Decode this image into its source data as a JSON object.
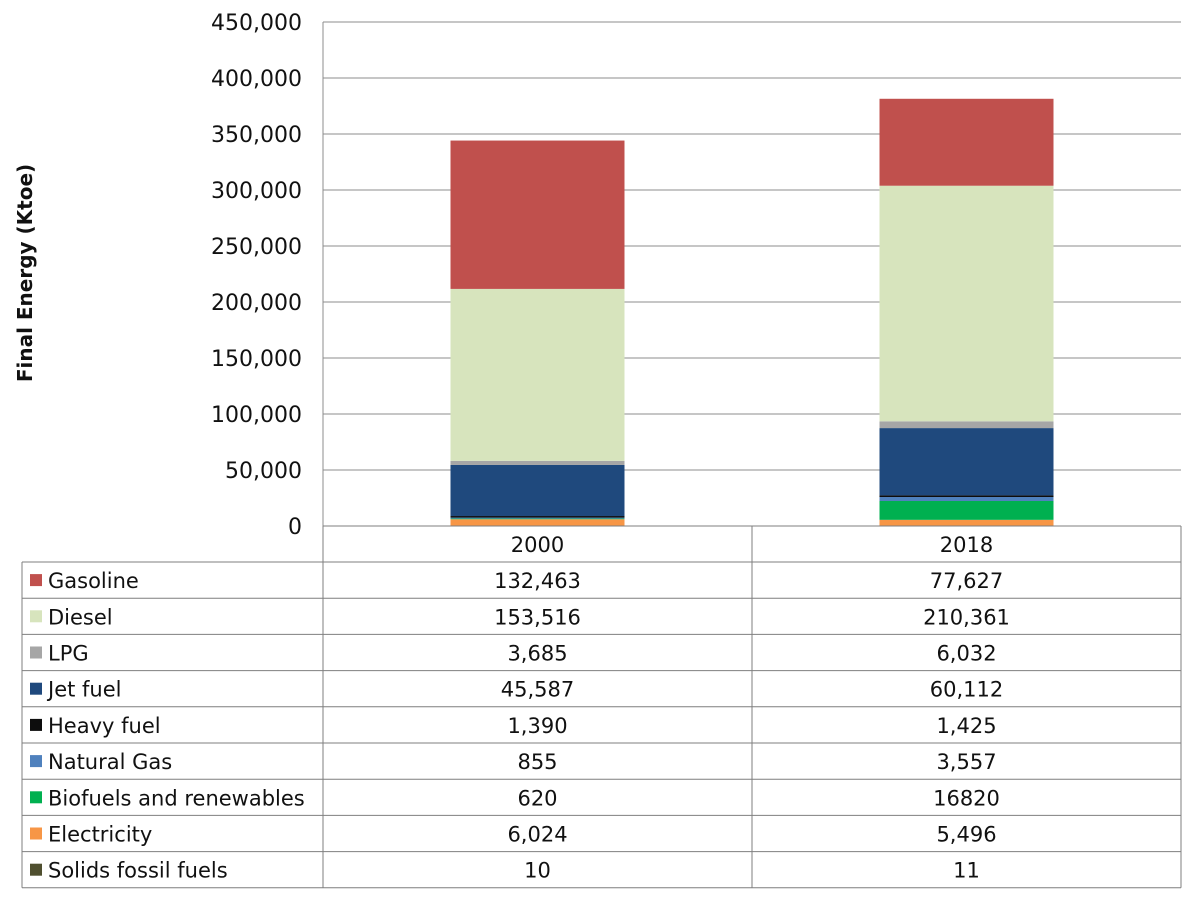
{
  "chart_data": {
    "type": "bar",
    "stacked": true,
    "title": "",
    "xlabel": "",
    "ylabel": "Final Energy (Ktoe)",
    "ylim": [
      0,
      450000
    ],
    "yticks": [
      0,
      50000,
      100000,
      150000,
      200000,
      250000,
      300000,
      350000,
      400000,
      450000
    ],
    "ytick_labels": [
      "0",
      "50,000",
      "100,000",
      "150,000",
      "200,000",
      "250,000",
      "300,000",
      "350,000",
      "400,000",
      "450,000"
    ],
    "grid": true,
    "legend_placement": "data-table",
    "categories": [
      "2000",
      "2018"
    ],
    "series": [
      {
        "name": "Gasoline",
        "color": "#c0504d",
        "values": [
          132463,
          77627
        ],
        "labels": [
          "132,463",
          "77,627"
        ]
      },
      {
        "name": "Diesel",
        "color": "#d7e4bd",
        "values": [
          153516,
          210361
        ],
        "labels": [
          "153,516",
          "210,361"
        ]
      },
      {
        "name": "LPG",
        "color": "#a6a6a6",
        "values": [
          3685,
          6032
        ],
        "labels": [
          "3,685",
          "6,032"
        ]
      },
      {
        "name": "Jet fuel",
        "color": "#1f497d",
        "values": [
          45587,
          60112
        ],
        "labels": [
          "45,587",
          "60,112"
        ]
      },
      {
        "name": "Heavy fuel",
        "color": "#0d0d0d",
        "values": [
          1390,
          1425
        ],
        "labels": [
          "1,390",
          "1,425"
        ]
      },
      {
        "name": "Natural Gas",
        "color": "#4f81bd",
        "values": [
          855,
          3557
        ],
        "labels": [
          "855",
          "3,557"
        ]
      },
      {
        "name": "Biofuels and renewables",
        "color": "#00b050",
        "values": [
          620,
          16820
        ],
        "labels": [
          "620",
          "16820"
        ]
      },
      {
        "name": "Electricity",
        "color": "#f79646",
        "values": [
          6024,
          5496
        ],
        "labels": [
          "6,024",
          "5,496"
        ]
      },
      {
        "name": "Solids fossil fuels",
        "color": "#4f4f2f",
        "values": [
          10,
          11
        ],
        "labels": [
          "10",
          "11"
        ]
      }
    ]
  }
}
